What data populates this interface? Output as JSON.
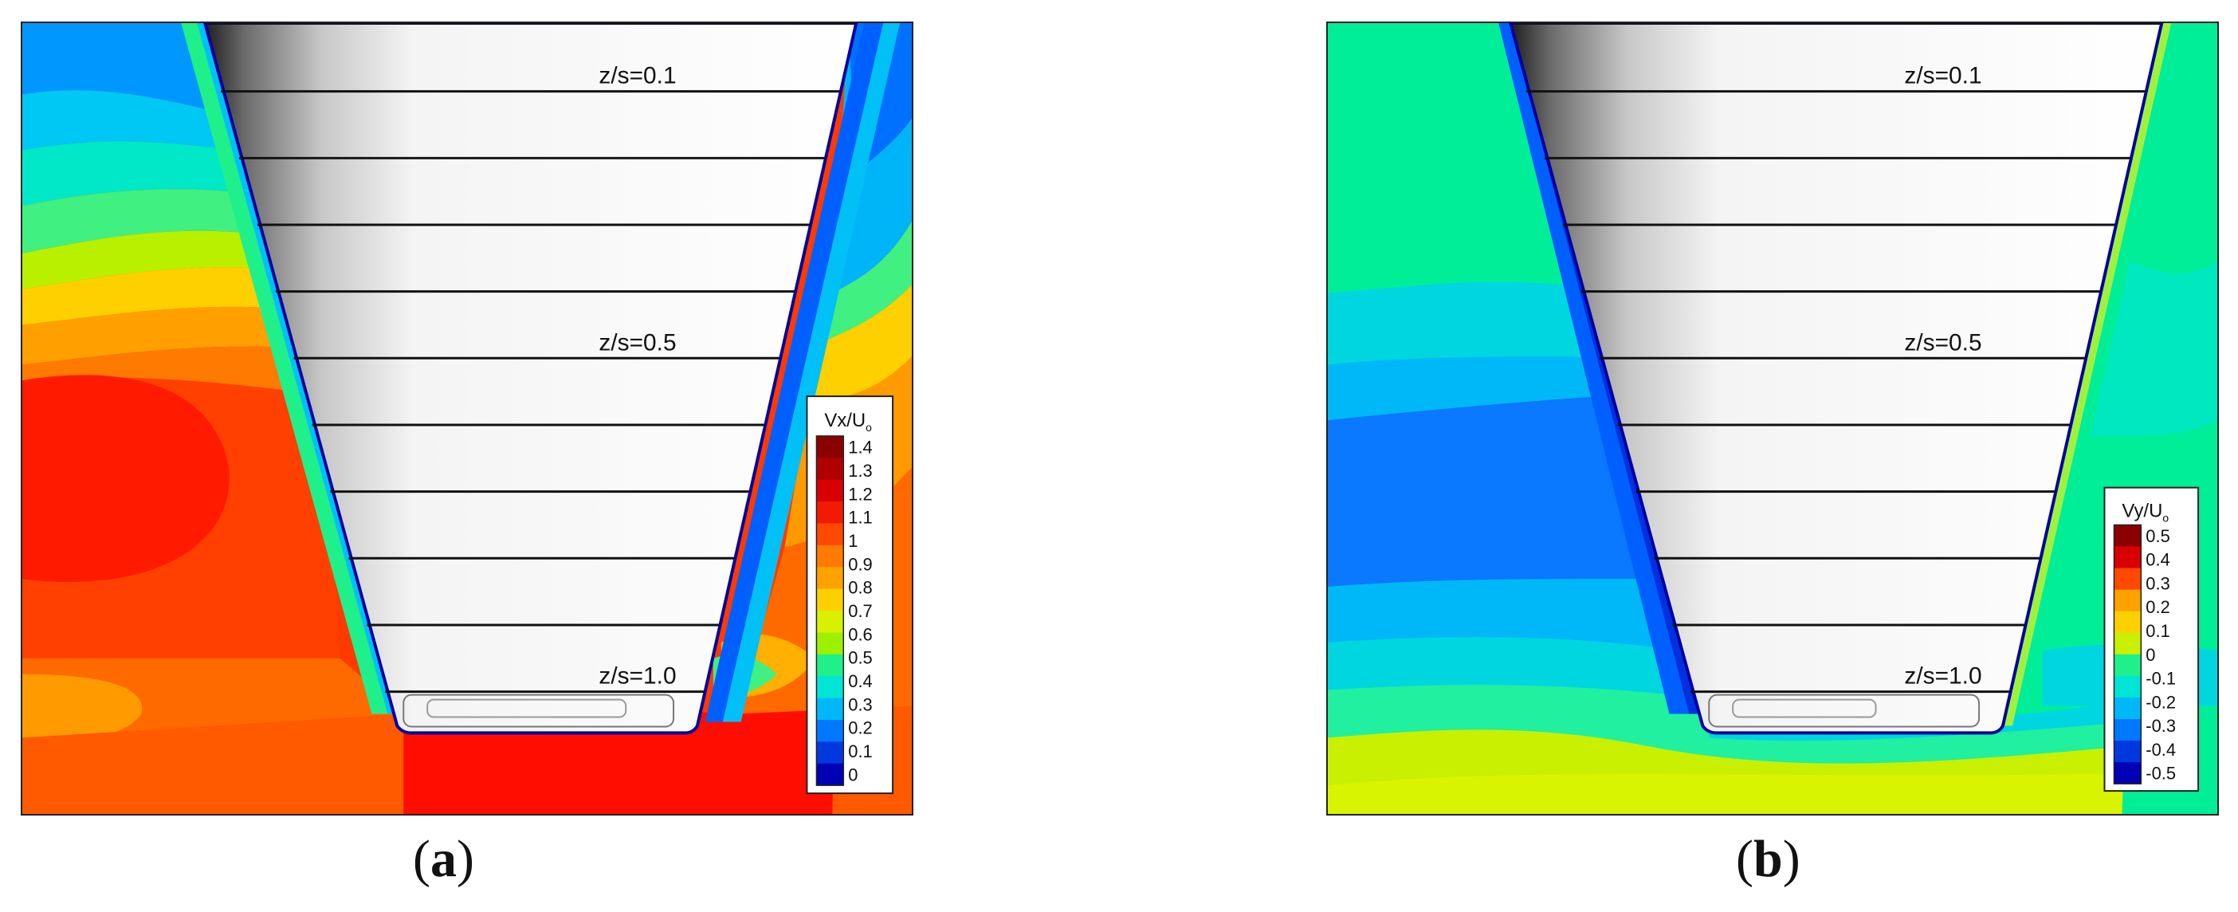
{
  "figure": {
    "panels": [
      {
        "id": "a",
        "caption": "a",
        "legend_title_main": "Vx/U",
        "legend_title_sub": "o",
        "legend_ticks": [
          "1.4",
          "1.3",
          "1.2",
          "1.1",
          "1",
          "0.9",
          "0.8",
          "0.7",
          "0.6",
          "0.5",
          "0.4",
          "0.3",
          "0.2",
          "0.1",
          "0"
        ],
        "legend_colors": [
          "#8b0000",
          "#b00000",
          "#d80000",
          "#f21a00",
          "#ff4800",
          "#ff7a00",
          "#ffa200",
          "#ffd000",
          "#d9f000",
          "#9cf000",
          "#20f08a",
          "#00e5d5",
          "#00b7f8",
          "#0077ff",
          "#0038e0",
          "#0000b4"
        ],
        "span_labels": [
          "z/s=0.1",
          "z/s=0.5",
          "z/s=1.0"
        ]
      },
      {
        "id": "b",
        "caption": "b",
        "legend_title_main": "Vy/U",
        "legend_title_sub": "o",
        "legend_ticks": [
          "0.5",
          "0.4",
          "0.3",
          "0.2",
          "0.1",
          "0",
          "-0.1",
          "-0.2",
          "-0.3",
          "-0.4",
          "-0.5"
        ],
        "legend_colors": [
          "#8b0000",
          "#d80000",
          "#ff4800",
          "#ffa200",
          "#ffd000",
          "#c8f000",
          "#20f08a",
          "#00e5d5",
          "#00b7f8",
          "#0077ff",
          "#0038e0",
          "#0000b4"
        ],
        "span_labels": [
          "z/s=0.1",
          "z/s=0.5",
          "z/s=1.0"
        ]
      }
    ]
  }
}
